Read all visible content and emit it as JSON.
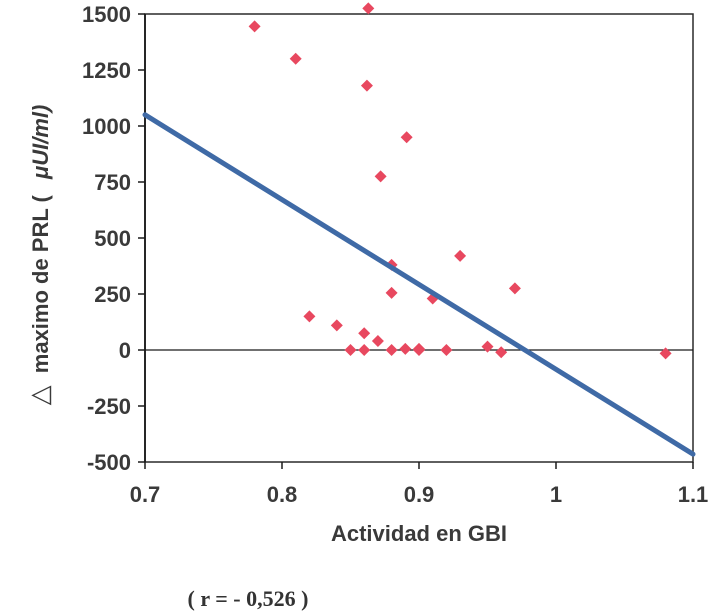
{
  "chart_data": {
    "type": "scatter",
    "xlabel": "Actividad en GBI",
    "ylabel_prefix": "△",
    "ylabel": "maximo de PRL (",
    "ylabel_unit": "μUI/ml)",
    "xlim": [
      0.7,
      1.1
    ],
    "ylim": [
      -500,
      1500
    ],
    "xticks": [
      0.7,
      0.8,
      0.9,
      1,
      1.1
    ],
    "xtick_labels": [
      "0.7",
      "0.8",
      "0.9",
      "1",
      "1.1"
    ],
    "yticks": [
      -500,
      -250,
      0,
      250,
      500,
      750,
      1000,
      1250,
      1500
    ],
    "ytick_labels": [
      "-500",
      "-250",
      "0",
      "250",
      "500",
      "750",
      "1000",
      "1250",
      "1500"
    ],
    "grid": false,
    "zero_line": true,
    "points": [
      {
        "x": 0.78,
        "y": 1445
      },
      {
        "x": 0.81,
        "y": 1300
      },
      {
        "x": 0.863,
        "y": 1525
      },
      {
        "x": 0.862,
        "y": 1180
      },
      {
        "x": 0.891,
        "y": 950
      },
      {
        "x": 0.872,
        "y": 775
      },
      {
        "x": 0.88,
        "y": 380
      },
      {
        "x": 0.93,
        "y": 420
      },
      {
        "x": 0.97,
        "y": 275
      },
      {
        "x": 0.88,
        "y": 255
      },
      {
        "x": 0.91,
        "y": 230
      },
      {
        "x": 0.82,
        "y": 150
      },
      {
        "x": 0.84,
        "y": 110
      },
      {
        "x": 0.86,
        "y": 75
      },
      {
        "x": 0.87,
        "y": 40
      },
      {
        "x": 0.85,
        "y": 0
      },
      {
        "x": 0.86,
        "y": 0
      },
      {
        "x": 0.88,
        "y": 0
      },
      {
        "x": 0.89,
        "y": 5
      },
      {
        "x": 0.9,
        "y": 5
      },
      {
        "x": 0.9,
        "y": 0
      },
      {
        "x": 0.92,
        "y": 0
      },
      {
        "x": 0.95,
        "y": 15
      },
      {
        "x": 0.96,
        "y": -10
      },
      {
        "x": 1.08,
        "y": -15
      }
    ],
    "regression": {
      "x": [
        0.7,
        1.1
      ],
      "y": [
        1050,
        -465
      ]
    },
    "marker_color": "#e8485f",
    "line_color": "#3f6aa6",
    "annotation": "( r = - 0,526 )"
  }
}
